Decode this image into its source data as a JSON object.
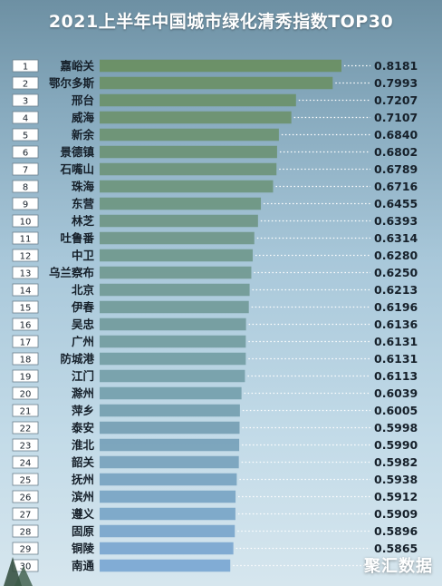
{
  "chart_data": {
    "type": "bar",
    "orientation": "horizontal",
    "title": "2021上半年中国城市绿化清秀指数TOP30",
    "ranks": [
      "1",
      "2",
      "3",
      "4",
      "5",
      "6",
      "7",
      "8",
      "9",
      "10",
      "11",
      "12",
      "13",
      "14",
      "15",
      "16",
      "17",
      "18",
      "19",
      "20",
      "21",
      "22",
      "23",
      "24",
      "25",
      "26",
      "27",
      "28",
      "29",
      "30"
    ],
    "categories": [
      "嘉峪关",
      "鄂尔多斯",
      "邢台",
      "威海",
      "新余",
      "景德镇",
      "石嘴山",
      "珠海",
      "东营",
      "林芝",
      "吐鲁番",
      "中卫",
      "乌兰察布",
      "北京",
      "伊春",
      "吴忠",
      "广州",
      "防城港",
      "江门",
      "滁州",
      "萍乡",
      "泰安",
      "淮北",
      "韶关",
      "抚州",
      "滨州",
      "遵义",
      "固原",
      "铜陵",
      "南通"
    ],
    "values": [
      0.8181,
      0.7993,
      0.7207,
      0.7107,
      0.684,
      0.6802,
      0.6789,
      0.6716,
      0.6455,
      0.6393,
      0.6314,
      0.628,
      0.625,
      0.6213,
      0.6196,
      0.6136,
      0.6131,
      0.6131,
      0.6113,
      0.6039,
      0.6005,
      0.5998,
      0.599,
      0.5982,
      0.5938,
      0.5912,
      0.5909,
      0.5896,
      0.5865,
      0.5799
    ],
    "value_labels": [
      "0.8181",
      "0.7993",
      "0.7207",
      "0.7107",
      "0.6840",
      "0.6802",
      "0.6789",
      "0.6716",
      "0.6455",
      "0.6393",
      "0.6314",
      "0.6280",
      "0.6250",
      "0.6213",
      "0.6196",
      "0.6136",
      "0.6131",
      "0.6131",
      "0.6113",
      "0.6039",
      "0.6005",
      "0.5998",
      "0.5990",
      "0.5982",
      "0.5938",
      "0.5912",
      "0.5909",
      "0.5896",
      "0.5865",
      ""
    ],
    "xlim": [
      0.3,
      0.8181
    ],
    "grid": false,
    "legend": "none",
    "colors": {
      "bar_top": "#6a8f62",
      "bar_bottom": "#7aa7d3",
      "rank_box_fill": "#ffffff",
      "rank_box_stroke": "#6b7f8c",
      "text": "#16202a",
      "leader": "#ffffff"
    }
  },
  "watermark": "聚汇数据"
}
